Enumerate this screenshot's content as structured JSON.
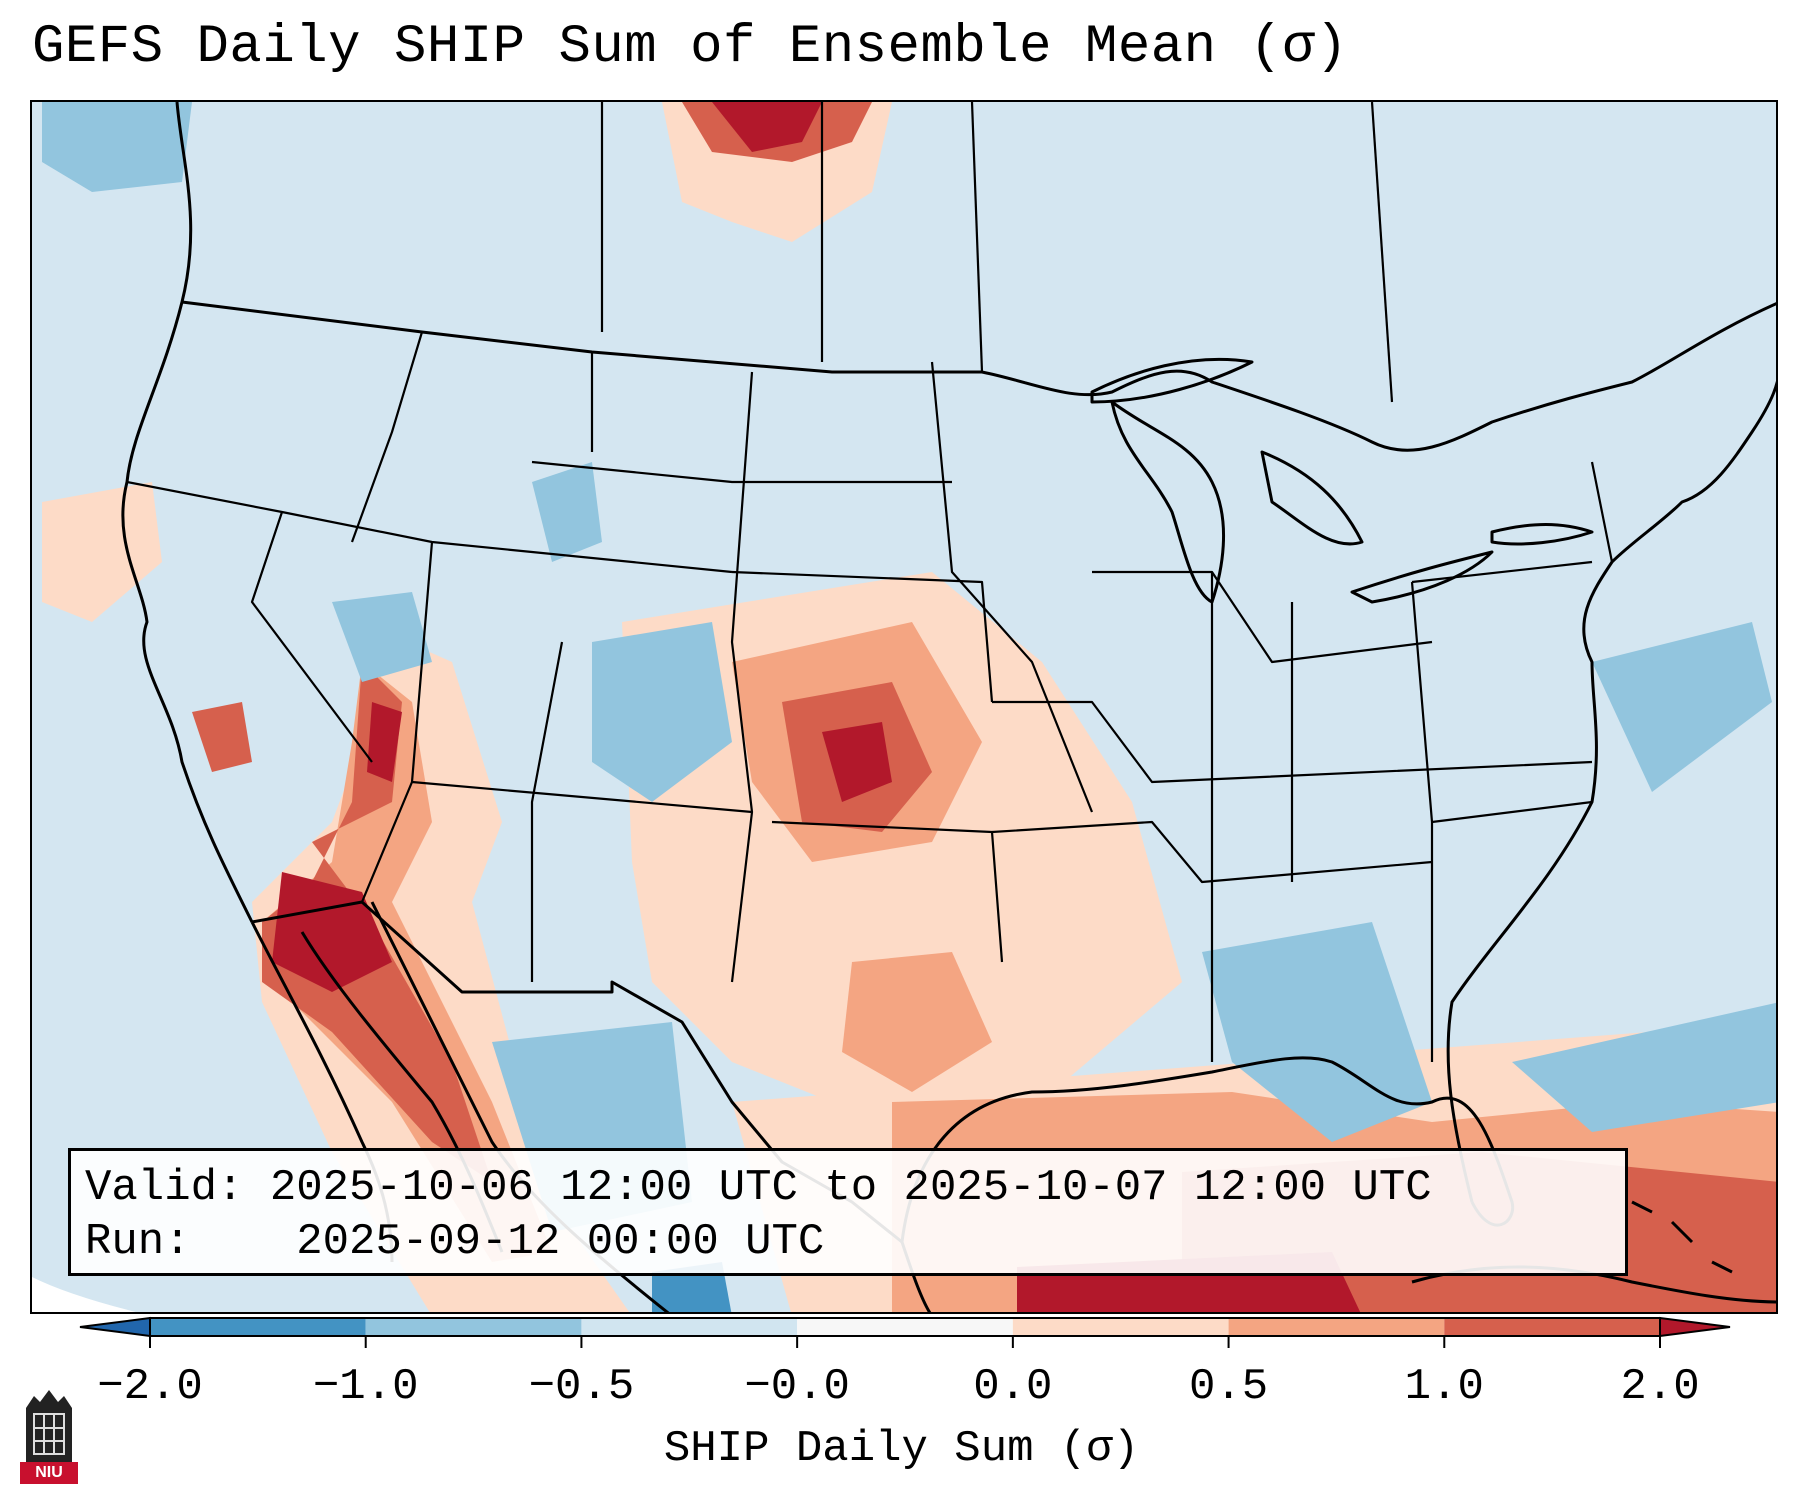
{
  "title": "GEFS Daily SHIP Sum of Ensemble Mean (σ)",
  "info": {
    "valid_label": "Valid:",
    "valid_value": "2025-10-06 12:00 UTC to 2025-10-07 12:00 UTC",
    "run_label": "Run:",
    "run_value": "2025-09-12 00:00 UTC"
  },
  "colorbar": {
    "label": "SHIP Daily Sum (σ)",
    "ticks": [
      "−2.0",
      "−1.0",
      "−0.5",
      "−0.0",
      "0.0",
      "0.5",
      "1.0",
      "2.0"
    ],
    "colors": [
      "#4393c3",
      "#92c5de",
      "#d1e5f0",
      "#f7f7f7",
      "#fddbc7",
      "#f4a582",
      "#d6604d"
    ],
    "under_color": "#2166ac",
    "over_color": "#b2182b"
  },
  "map": {
    "ocean_color": "#d4e6f1",
    "hatch_regions": [
      {
        "name": "southern-plains-max",
        "level": "over"
      },
      {
        "name": "gulf-of-mexico",
        "level": "0.5-1.0"
      },
      {
        "name": "baja-sonora",
        "level": "1.0-2.0"
      }
    ]
  },
  "logo": {
    "text": "NIU"
  }
}
